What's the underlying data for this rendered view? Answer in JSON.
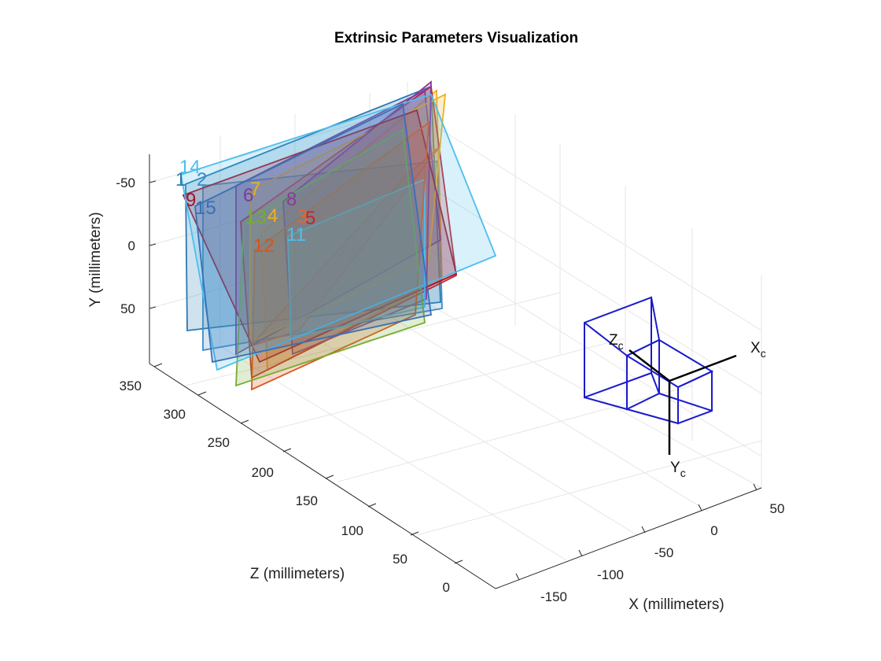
{
  "title": "Extrinsic Parameters Visualization",
  "axes": {
    "x": {
      "label": "X (millimeters)",
      "ticks": [
        "-150",
        "-100",
        "-50",
        "0",
        "50"
      ]
    },
    "y": {
      "label": "Y (millimeters)",
      "ticks": [
        "-50",
        "0",
        "50"
      ]
    },
    "z": {
      "label": "Z (millimeters)",
      "ticks": [
        "350",
        "300",
        "250",
        "200",
        "150",
        "100",
        "50",
        "0"
      ]
    }
  },
  "camera": {
    "color": "#1a1acc",
    "axis_labels": {
      "x": "X",
      "x_sub": "c",
      "y": "Y",
      "y_sub": "c",
      "z": "Z",
      "z_sub": "c"
    }
  },
  "chart_data": {
    "type": "3d-plane-visualization",
    "title": "Extrinsic Parameters Visualization",
    "xlabel": "X (millimeters)",
    "ylabel": "Y (millimeters)",
    "zlabel": "Z (millimeters)",
    "series": [
      {
        "id": "1",
        "color": "#2a7ab0"
      },
      {
        "id": "2",
        "color": "#3d8cc4"
      },
      {
        "id": "3",
        "color": "#e8662a"
      },
      {
        "id": "4",
        "color": "#edb120"
      },
      {
        "id": "5",
        "color": "#c0262f"
      },
      {
        "id": "6",
        "color": "#7e3b96"
      },
      {
        "id": "7",
        "color": "#edb120"
      },
      {
        "id": "8",
        "color": "#8a3b98"
      },
      {
        "id": "9",
        "color": "#a2142f"
      },
      {
        "id": "11",
        "color": "#4dbeee"
      },
      {
        "id": "12",
        "color": "#d95319"
      },
      {
        "id": "13",
        "color": "#77ac30"
      },
      {
        "id": "14",
        "color": "#4dbeee"
      },
      {
        "id": "15",
        "color": "#3a6fb4"
      }
    ]
  }
}
